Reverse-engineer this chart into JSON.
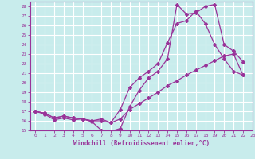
{
  "title": "",
  "xlabel": "Windchill (Refroidissement éolien,°C)",
  "ylabel": "",
  "bg_color": "#c8ecec",
  "line_color": "#993399",
  "grid_color": "#ffffff",
  "xlim": [
    -0.5,
    23
  ],
  "ylim": [
    15,
    28.5
  ],
  "yticks": [
    15,
    16,
    17,
    18,
    19,
    20,
    21,
    22,
    23,
    24,
    25,
    26,
    27,
    28
  ],
  "xticks": [
    0,
    1,
    2,
    3,
    4,
    5,
    6,
    7,
    8,
    9,
    10,
    11,
    12,
    13,
    14,
    15,
    16,
    17,
    18,
    19,
    20,
    21,
    22,
    23
  ],
  "series": [
    {
      "x": [
        0,
        1,
        2,
        3,
        4,
        5,
        6,
        7,
        8,
        9,
        10,
        11,
        12,
        13,
        14,
        15,
        16,
        17,
        18,
        19,
        20,
        21,
        22
      ],
      "y": [
        17.0,
        16.7,
        16.1,
        16.3,
        16.1,
        16.2,
        15.9,
        15.0,
        14.9,
        15.2,
        17.5,
        19.2,
        20.5,
        21.2,
        22.5,
        28.2,
        27.2,
        27.3,
        28.0,
        28.2,
        24.0,
        23.3,
        22.2
      ]
    },
    {
      "x": [
        0,
        1,
        2,
        3,
        4,
        5,
        6,
        7,
        8,
        9,
        10,
        11,
        12,
        13,
        14,
        15,
        16,
        17,
        18,
        19,
        20,
        21,
        22
      ],
      "y": [
        17.0,
        16.8,
        16.3,
        16.5,
        16.3,
        16.2,
        16.0,
        16.2,
        15.8,
        17.2,
        19.5,
        20.5,
        21.2,
        22.0,
        24.2,
        26.2,
        26.5,
        27.5,
        26.2,
        24.0,
        22.5,
        21.2,
        20.8
      ]
    },
    {
      "x": [
        0,
        1,
        2,
        3,
        4,
        5,
        6,
        7,
        8,
        9,
        10,
        11,
        12,
        13,
        14,
        15,
        16,
        17,
        18,
        19,
        20,
        21,
        22
      ],
      "y": [
        17.0,
        16.8,
        16.3,
        16.5,
        16.3,
        16.2,
        16.0,
        16.0,
        15.8,
        16.2,
        17.2,
        17.8,
        18.4,
        19.0,
        19.7,
        20.2,
        20.8,
        21.3,
        21.8,
        22.3,
        22.8,
        23.0,
        20.8
      ]
    }
  ]
}
